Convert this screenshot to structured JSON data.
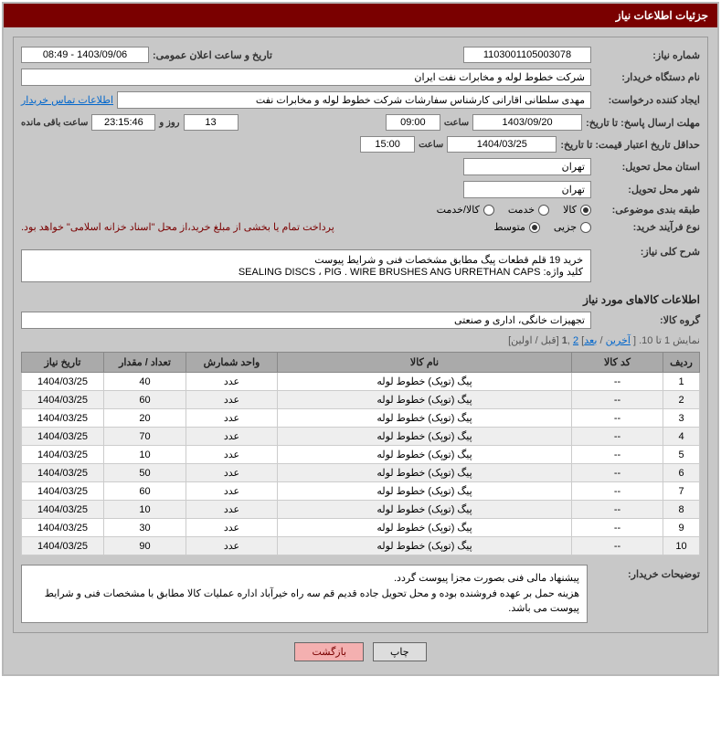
{
  "header": {
    "title": "جزئیات اطلاعات نیاز"
  },
  "fields": {
    "need_no_label": "شماره نیاز:",
    "need_no": "1103001105003078",
    "anon_date_label": "تاریخ و ساعت اعلان عمومی:",
    "anon_date": "1403/09/06 - 08:49",
    "buyer_org_label": "نام دستگاه خریدار:",
    "buyer_org": "شرکت خطوط لوله و مخابرات نفت ایران",
    "requester_label": "ایجاد کننده درخواست:",
    "requester": "مهدی سلطانی اقارانی کارشناس سفارشات  شرکت خطوط لوله و مخابرات نفت",
    "contact_link": "اطلاعات تماس خریدار",
    "deadline_send_label": "مهلت ارسال پاسخ: تا تاریخ:",
    "deadline_send_date": "1403/09/20",
    "hour_label": "ساعت",
    "deadline_send_time": "09:00",
    "days_remain": "13",
    "days_remain_label": "روز و",
    "time_remain": "23:15:46",
    "time_remain_label": "ساعت باقی مانده",
    "price_valid_label": "حداقل تاریخ اعتبار قیمت: تا تاریخ:",
    "price_valid_date": "1404/03/25",
    "price_valid_time": "15:00",
    "province_label": "استان محل تحویل:",
    "province": "تهران",
    "city_label": "شهر محل تحویل:",
    "city": "تهران",
    "subject_cat_label": "طبقه بندی موضوعی:",
    "cat_goods": "کالا",
    "cat_service": "خدمت",
    "cat_goods_service": "کالا/خدمت",
    "purchase_type_label": "نوع فرآیند خرید:",
    "type_partial": "جزیی",
    "type_medium": "متوسط",
    "purchase_note": "پرداخت تمام یا بخشی از مبلغ خرید،از محل \"اسناد خزانه اسلامی\" خواهد بود.",
    "overall_desc_label": "شرح کلی نیاز:",
    "overall_desc_l1": "خرید 19 قلم قطعات پیگ مطابق مشخصات فنی و شرایط پیوست",
    "overall_desc_l2": "کلید واژه: SEALING DISCS  ،  PIG . WIRE BRUSHES ANG URRETHAN CAPS",
    "goods_section_title": "اطلاعات کالاهای مورد نیاز",
    "goods_group_label": "گروه کالا:",
    "goods_group": "تجهیزات خانگی، اداری و صنعتی",
    "pager_text_1": "نمایش 1 تا 10. [ ",
    "pager_last": "آخرین",
    "pager_next": "بعد",
    "pager_mid": "] ",
    "pager_p2": "2",
    "pager_comma": " ,",
    "pager_p1": "1",
    "pager_prev_first": " [قبل / اولین]",
    "buyer_notes_label": "توضیحات خریدار:",
    "buyer_notes": "پیشنهاد  مالی فنی بصورت مجزا پیوست گردد.\nهزینه حمل بر عهده فروشنده بوده و محل تحویل جاده قدیم قم سه راه خیرآباد اداره عملیات کالا مطابق با مشخصات فنی و شرایط پیوست می باشد.",
    "btn_print": "چاپ",
    "btn_back": "بازگشت"
  },
  "table": {
    "headers": [
      "ردیف",
      "کد کالا",
      "نام کالا",
      "واحد شمارش",
      "تعداد / مقدار",
      "تاریخ نیاز"
    ],
    "rows": [
      [
        "1",
        "--",
        "پیگ (توپک) خطوط لوله",
        "عدد",
        "40",
        "1404/03/25"
      ],
      [
        "2",
        "--",
        "پیگ (توپک) خطوط لوله",
        "عدد",
        "60",
        "1404/03/25"
      ],
      [
        "3",
        "--",
        "پیگ (توپک) خطوط لوله",
        "عدد",
        "20",
        "1404/03/25"
      ],
      [
        "4",
        "--",
        "پیگ (توپک) خطوط لوله",
        "عدد",
        "70",
        "1404/03/25"
      ],
      [
        "5",
        "--",
        "پیگ (توپک) خطوط لوله",
        "عدد",
        "10",
        "1404/03/25"
      ],
      [
        "6",
        "--",
        "پیگ (توپک) خطوط لوله",
        "عدد",
        "50",
        "1404/03/25"
      ],
      [
        "7",
        "--",
        "پیگ (توپک) خطوط لوله",
        "عدد",
        "60",
        "1404/03/25"
      ],
      [
        "8",
        "--",
        "پیگ (توپک) خطوط لوله",
        "عدد",
        "10",
        "1404/03/25"
      ],
      [
        "9",
        "--",
        "پیگ (توپک) خطوط لوله",
        "عدد",
        "30",
        "1404/03/25"
      ],
      [
        "10",
        "--",
        "پیگ (توپک) خطوط لوله",
        "عدد",
        "90",
        "1404/03/25"
      ]
    ]
  },
  "colors": {
    "header_bg": "#7a0000",
    "panel_bg": "#c8c8c8",
    "outer_bg": "#b8b8b8",
    "link": "#0066cc"
  }
}
